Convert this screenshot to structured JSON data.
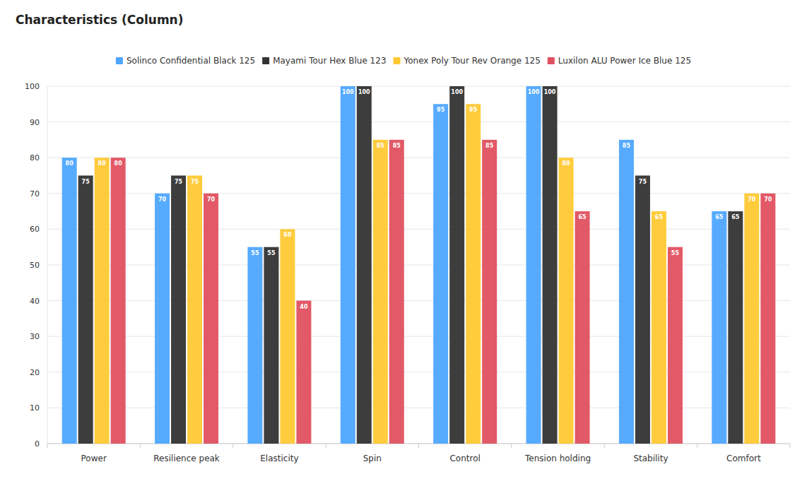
{
  "chart_data": {
    "type": "bar",
    "title": "Characteristics (Column)",
    "categories": [
      "Power",
      "Resilience peak",
      "Elasticity",
      "Spin",
      "Control",
      "Tension holding",
      "Stability",
      "Comfort"
    ],
    "series": [
      {
        "name": "Solinco Confidential Black 125",
        "color": "#4da6ff",
        "values": [
          80,
          70,
          55,
          100,
          95,
          100,
          85,
          65
        ]
      },
      {
        "name": "Mayami Tour Hex Blue 123",
        "color": "#333333",
        "values": [
          75,
          75,
          55,
          100,
          100,
          100,
          75,
          65
        ]
      },
      {
        "name": "Yonex Poly Tour Rev Orange 125",
        "color": "#ffc933",
        "values": [
          80,
          75,
          60,
          85,
          95,
          80,
          65,
          70
        ]
      },
      {
        "name": "Luxilon ALU Power Ice Blue 125",
        "color": "#e0505f",
        "values": [
          80,
          70,
          40,
          85,
          85,
          65,
          55,
          70
        ]
      }
    ],
    "ylim": [
      0,
      100
    ],
    "yticks": [
      0,
      10,
      20,
      30,
      40,
      50,
      60,
      70,
      80,
      90,
      100
    ],
    "grid": true,
    "legend": "top",
    "data_labels": true
  }
}
